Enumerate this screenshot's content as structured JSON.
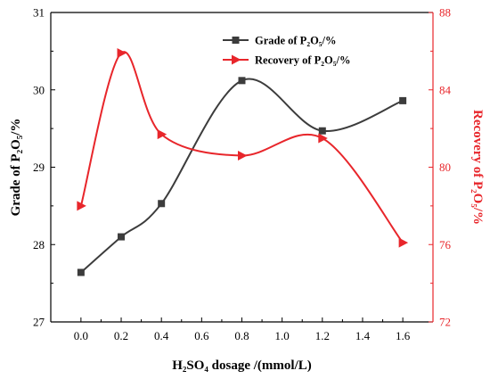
{
  "chart_data": {
    "type": "line",
    "title": "",
    "x": [
      0.0,
      0.2,
      0.4,
      0.8,
      1.2,
      1.6
    ],
    "xlim": [
      -0.15,
      1.75
    ],
    "xticks": [
      "0.0",
      "0.2",
      "0.4",
      "0.6",
      "0.8",
      "1.0",
      "1.2",
      "1.4",
      "1.6"
    ],
    "xlabel": "H₂SO₄ dosage /(mmol/L)",
    "ylabel_left": "Grade of P₂O₅/%",
    "ylim_left": [
      27,
      31
    ],
    "yticks_left": [
      "27",
      "28",
      "29",
      "30",
      "31"
    ],
    "ylabel_right": "Recovery of P₂O₅/%",
    "ylim_right": [
      72,
      88
    ],
    "yticks_right": [
      "72",
      "76",
      "80",
      "84",
      "88"
    ],
    "grid": false,
    "legend_position": "top-right",
    "series": [
      {
        "name": "Grade of P₂O₅/%",
        "axis": "left",
        "color": "#3c3c3c",
        "marker": "square",
        "values": [
          27.64,
          28.1,
          28.53,
          30.12,
          29.47,
          29.86
        ]
      },
      {
        "name": "Recovery of P₂O₅/%",
        "axis": "right",
        "color": "#e8262b",
        "marker": "triangle-right",
        "values": [
          78.0,
          85.9,
          81.7,
          80.6,
          81.5,
          76.1
        ]
      }
    ]
  }
}
